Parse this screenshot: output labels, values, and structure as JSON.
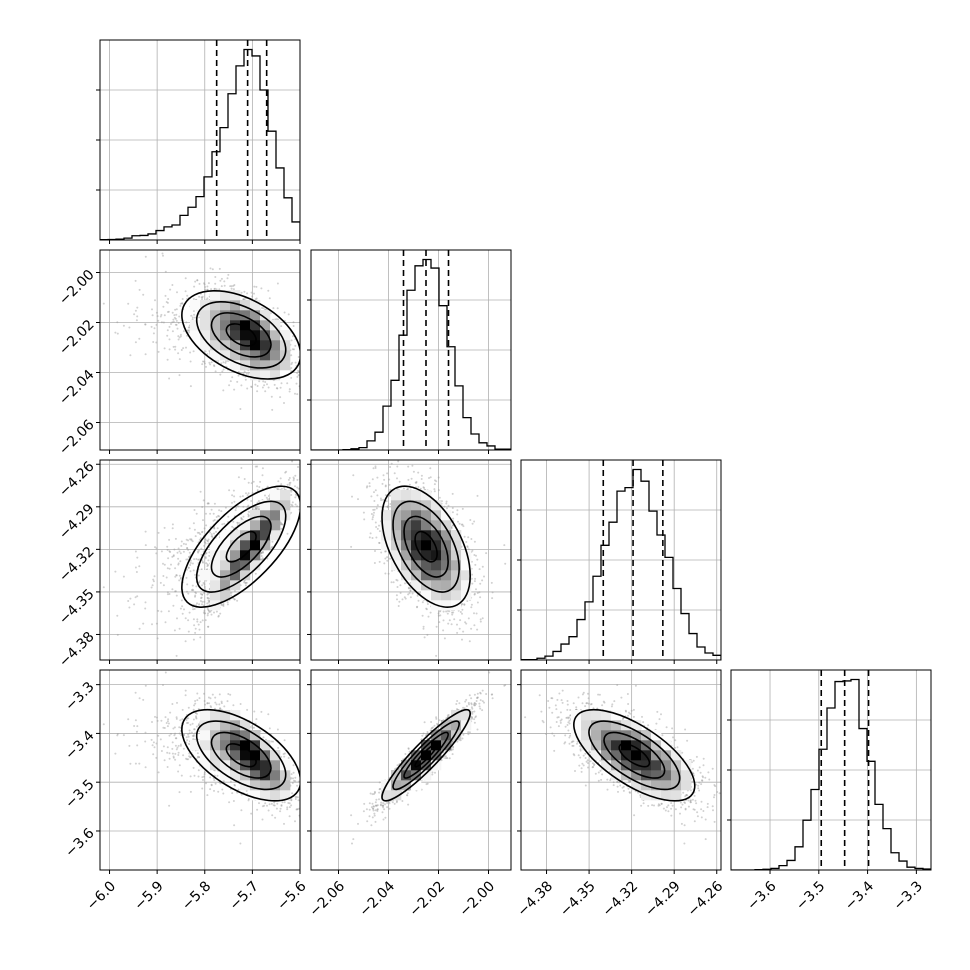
{
  "chart_data": {
    "type": "corner",
    "parameters": [
      {
        "mean": -5.7,
        "sd": 0.045,
        "skew": "left",
        "range": [
          -6.02,
          -5.6
        ],
        "ticks": [
          -6.0,
          -5.9,
          -5.8,
          -5.7,
          -5.6
        ],
        "tick_labels": [
          "−6.0",
          "−5.9",
          "−5.8",
          "−5.7",
          "−5.6"
        ],
        "quantiles": [
          -5.775,
          -5.71,
          -5.67
        ]
      },
      {
        "mean": -2.025,
        "sd": 0.0088,
        "skew": "none",
        "range": [
          -2.071,
          -1.991
        ],
        "ticks": [
          -2.06,
          -2.04,
          -2.02,
          -2.0
        ],
        "tick_labels": [
          "−2.06",
          "−2.04",
          "−2.02",
          "−2.00"
        ],
        "quantiles": [
          -2.034,
          -2.025,
          -2.016
        ]
      },
      {
        "mean": -4.318,
        "sd": 0.0215,
        "skew": "none",
        "range": [
          -4.398,
          -4.257
        ],
        "ticks": [
          -4.38,
          -4.35,
          -4.32,
          -4.29,
          -4.26
        ],
        "tick_labels": [
          "−4.38",
          "−4.35",
          "−4.32",
          "−4.29",
          "−4.26"
        ],
        "quantiles": [
          -4.34,
          -4.319,
          -4.298
        ]
      },
      {
        "mean": -3.445,
        "sd": 0.047,
        "skew": "none",
        "range": [
          -3.68,
          -3.27
        ],
        "ticks": [
          -3.6,
          -3.5,
          -3.4,
          -3.3
        ],
        "tick_labels": [
          "−3.6",
          "−3.5",
          "−3.4",
          "−3.3"
        ],
        "quantiles": [
          -3.495,
          -3.447,
          -3.398
        ]
      }
    ],
    "correlations": [
      [
        1.0,
        -0.62,
        0.93,
        -0.78
      ],
      [
        -0.62,
        1.0,
        -0.5,
        0.92
      ],
      [
        0.93,
        -0.5,
        1.0,
        -0.68
      ],
      [
        -0.78,
        0.92,
        -0.68,
        1.0
      ]
    ],
    "grid": true,
    "title": "",
    "axis_labels": [
      "",
      "",
      "",
      ""
    ]
  }
}
